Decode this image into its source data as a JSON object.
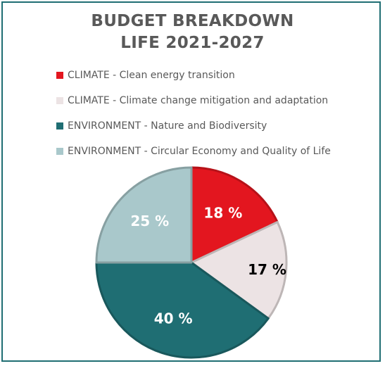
{
  "chart_data": {
    "type": "pie",
    "title": [
      "BUDGET BREAKDOWN",
      "LIFE 2021-2027"
    ],
    "unit": "%",
    "legend_position": "top",
    "slices": [
      {
        "name": "CLIMATE - Clean energy transition",
        "value": 18,
        "label": "18 %",
        "color": "#e3161f",
        "label_color": "#ffffff"
      },
      {
        "name": "CLIMATE - Climate change mitigation and adaptation",
        "value": 17,
        "label": "17 %",
        "color": "#ece3e4",
        "label_color": "#000000"
      },
      {
        "name": "ENVIRONMENT - Nature and Biodiversity",
        "value": 40,
        "label": "40 %",
        "color": "#1f6e73",
        "label_color": "#ffffff"
      },
      {
        "name": "ENVIRONMENT - Circular Economy and Quality of Life",
        "value": 25,
        "label": "25 %",
        "color": "#a9c8cb",
        "label_color": "#ffffff"
      }
    ],
    "border_colors": {
      "frame": "#1f6e73"
    }
  }
}
